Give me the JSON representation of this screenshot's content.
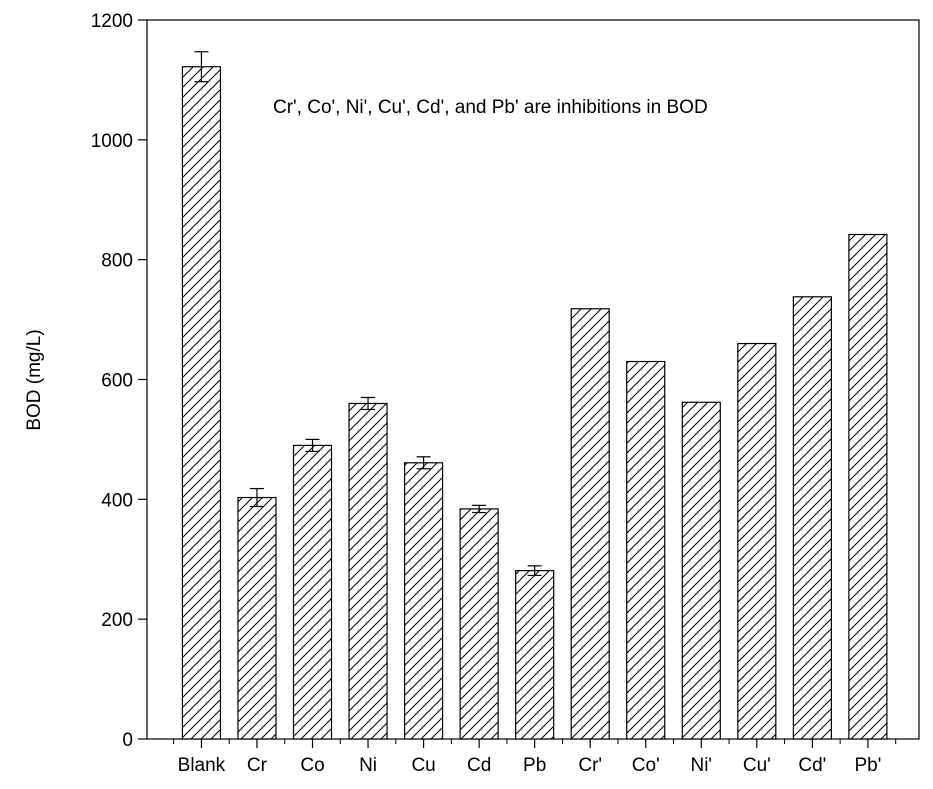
{
  "chart_data": {
    "type": "bar",
    "categories": [
      "Blank",
      "Cr",
      "Co",
      "Ni",
      "Cu",
      "Cd",
      "Pb",
      "Cr'",
      "Co'",
      "Ni'",
      "Cu'",
      "Cd'",
      "Pb'"
    ],
    "values": [
      1122,
      403,
      490,
      560,
      461,
      384,
      281,
      718,
      630,
      562,
      660,
      738,
      842
    ],
    "errors": [
      25,
      15,
      10,
      10,
      10,
      6,
      8,
      null,
      null,
      null,
      null,
      null,
      null
    ],
    "title": "",
    "xlabel": "",
    "ylabel": "BOD (mg/L)",
    "ylim": [
      0,
      1200
    ],
    "yticks": [
      "0",
      "200",
      "400",
      "600",
      "800",
      "1000",
      "1200"
    ],
    "annotation": "Cr', Co', Ni', Cu', Cd', and Pb' are inhibitions in BOD",
    "grid": false,
    "bar_fill": "diagonal-hatch",
    "colors": {
      "bar_stroke": "#000000",
      "background": "#ffffff"
    }
  }
}
